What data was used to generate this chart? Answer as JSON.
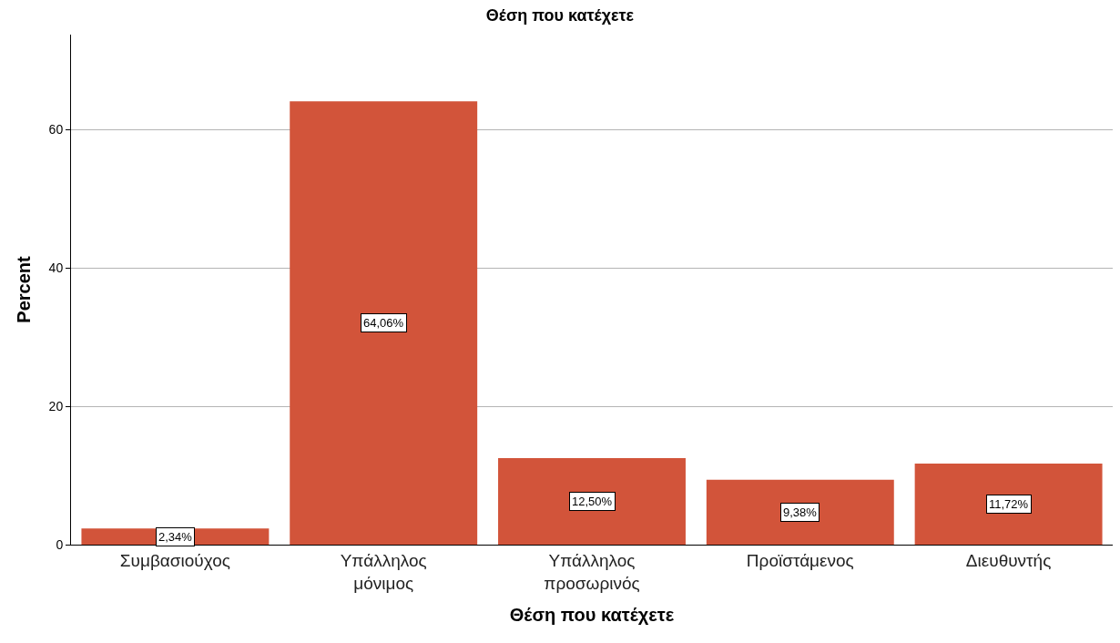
{
  "chart_data": {
    "type": "bar",
    "title": "Θέση που κατέχετε",
    "xlabel": "Θέση που κατέχετε",
    "ylabel": "Percent",
    "categories": [
      "Συμβασιούχος",
      "Υπάλληλος μόνιμος",
      "Υπάλληλος προσωρινός",
      "Προϊστάμενος",
      "Διευθυντής"
    ],
    "values": [
      2.34,
      64.06,
      12.5,
      9.38,
      11.72
    ],
    "value_labels": [
      "2,34%",
      "64,06%",
      "12,50%",
      "9,38%",
      "11,72%"
    ],
    "color": "#d2543a",
    "ylim": [
      0,
      73.7
    ],
    "yticks": [
      0,
      20,
      40,
      60
    ],
    "grid": "y"
  }
}
